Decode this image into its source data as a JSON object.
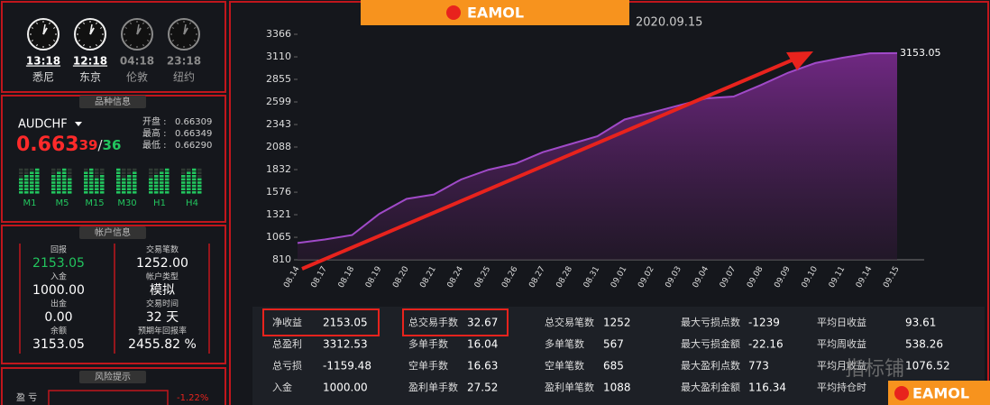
{
  "banner": {
    "logo": "EAMOL"
  },
  "clocks": [
    {
      "time": "13:18",
      "city": "悉尼"
    },
    {
      "time": "12:18",
      "city": "东京"
    },
    {
      "time": "04:18",
      "city": "伦敦"
    },
    {
      "time": "23:18",
      "city": "纽约"
    }
  ],
  "symbol_panel": {
    "title": "品种信息",
    "symbol": "AUDCHF",
    "price_main": "0.663",
    "price_bid": "39",
    "price_sep": "/",
    "price_ask": "36",
    "quotes": [
      {
        "label": "开盘 :",
        "value": "0.66309"
      },
      {
        "label": "最高 :",
        "value": "0.66349"
      },
      {
        "label": "最低 :",
        "value": "0.66290"
      }
    ],
    "timeframes": [
      "M1",
      "M5",
      "M15",
      "M30",
      "H1",
      "H4"
    ]
  },
  "account_panel": {
    "title": "帐户信息",
    "left": [
      {
        "label": "回报",
        "value": "2153.05"
      },
      {
        "label": "入金",
        "value": "1000.00"
      },
      {
        "label": "出金",
        "value": "0.00"
      },
      {
        "label": "余额",
        "value": "3153.05"
      }
    ],
    "right": [
      {
        "label": "交易笔数",
        "value": "1252.00"
      },
      {
        "label": "帐户类型",
        "value": "模拟"
      },
      {
        "label": "交易时间",
        "value": "32 天"
      },
      {
        "label": "预期年回报率",
        "value": "2455.82 %"
      }
    ]
  },
  "risk_panel": {
    "title": "风险提示",
    "label": "盈 亏",
    "value": "-1.22%"
  },
  "chart_data": {
    "type": "area",
    "title": "2020.09.15",
    "categories": [
      "08.14",
      "08.17",
      "08.18",
      "08.19",
      "08.20",
      "08.21",
      "08.24",
      "08.25",
      "08.26",
      "08.27",
      "08.28",
      "08.31",
      "09.01",
      "09.02",
      "09.03",
      "09.04",
      "09.07",
      "09.08",
      "09.09",
      "09.10",
      "09.11",
      "09.14",
      "09.15"
    ],
    "values": [
      1000,
      1040,
      1090,
      1330,
      1500,
      1550,
      1720,
      1830,
      1900,
      2030,
      2120,
      2210,
      2400,
      2480,
      2560,
      2640,
      2660,
      2790,
      2930,
      3040,
      3100,
      3150,
      3153.05
    ],
    "color": "#a04ac8",
    "ylim": [
      810,
      3366
    ],
    "yticks": [
      810,
      1065,
      1321,
      1576,
      1832,
      2088,
      2343,
      2599,
      2855,
      3110,
      3366
    ]
  },
  "stats": {
    "rows": [
      [
        {
          "label": "净收益",
          "value": "2153.05"
        },
        {
          "label": "总交易手数",
          "value": "32.67"
        },
        {
          "label": "总交易笔数",
          "value": "1252"
        },
        {
          "label": "最大亏损点数",
          "value": "-1239"
        },
        {
          "label": "平均日收益",
          "value": "93.61"
        }
      ],
      [
        {
          "label": "总盈利",
          "value": "3312.53"
        },
        {
          "label": "多单手数",
          "value": "16.04"
        },
        {
          "label": "多单笔数",
          "value": "567"
        },
        {
          "label": "最大亏损金额",
          "value": "-22.16"
        },
        {
          "label": "平均周收益",
          "value": "538.26"
        }
      ],
      [
        {
          "label": "总亏损",
          "value": "-1159.48"
        },
        {
          "label": "空单手数",
          "value": "16.63"
        },
        {
          "label": "空单笔数",
          "value": "685"
        },
        {
          "label": "最大盈利点数",
          "value": "773"
        },
        {
          "label": "平均月收益",
          "value": "1076.52"
        }
      ],
      [
        {
          "label": "入金",
          "value": "1000.00"
        },
        {
          "label": "盈利单手数",
          "value": "27.52"
        },
        {
          "label": "盈利单笔数",
          "value": "1088"
        },
        {
          "label": "最大盈利金额",
          "value": "116.34"
        },
        {
          "label": "平均持仓时",
          "value": ""
        }
      ]
    ]
  },
  "watermark": {
    "text": "指标铺",
    "logo": "EAMOL"
  }
}
